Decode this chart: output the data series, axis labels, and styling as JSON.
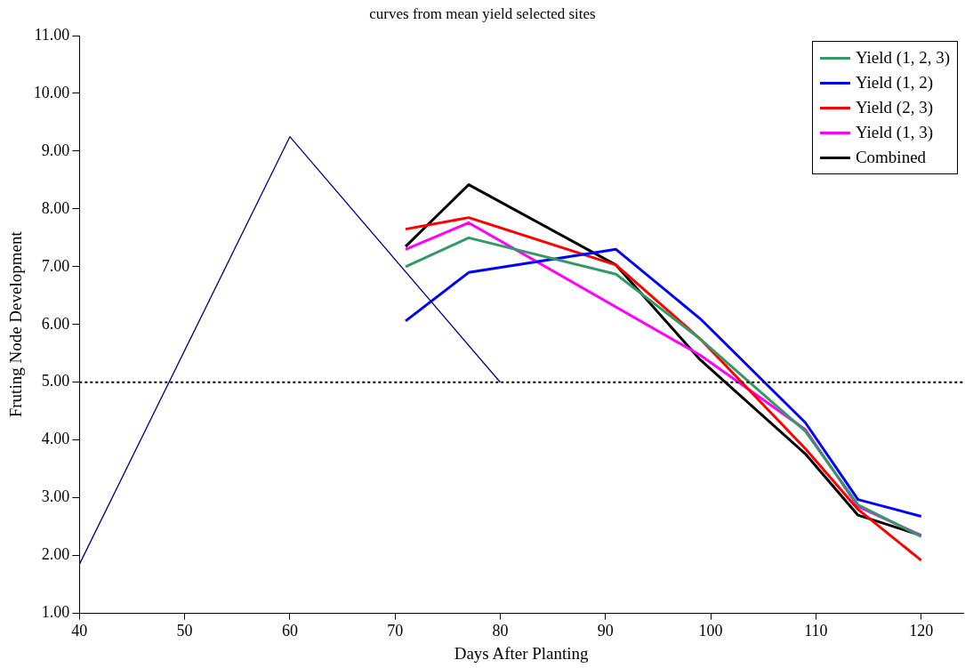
{
  "chart_data": {
    "type": "line",
    "title": "curves from mean yield selected sites",
    "xlabel": "Days After Planting",
    "ylabel": "Fruting Node Development",
    "x": [
      71,
      77,
      91,
      99,
      109,
      114,
      120
    ],
    "series": [
      {
        "name": "Yield (1, 2, 3)",
        "color": "#339966",
        "values": [
          7.0,
          7.5,
          6.87,
          5.75,
          4.15,
          2.88,
          2.33
        ]
      },
      {
        "name": "Yield (1, 2)",
        "color": "#0000ff",
        "values": [
          6.06,
          6.9,
          7.3,
          6.1,
          4.3,
          2.97,
          2.68
        ]
      },
      {
        "name": "Yield (2, 3)",
        "color": "#ff0000",
        "values": [
          7.65,
          7.85,
          7.03,
          5.75,
          3.85,
          2.8,
          1.92
        ]
      },
      {
        "name": "Yield (1, 3)",
        "color": "#ff00ff",
        "x": [
          71,
          77,
          99,
          109,
          114,
          120
        ],
        "values": [
          7.3,
          7.76,
          5.47,
          4.18,
          2.85,
          2.35
        ]
      },
      {
        "name": "Combined",
        "color": "#000000",
        "values": [
          7.35,
          8.42,
          7.03,
          5.39,
          3.76,
          2.7,
          2.35
        ]
      },
      {
        "color": "#000080",
        "x": [
          40,
          60,
          80
        ],
        "values": [
          1.85,
          9.25,
          5.0
        ]
      }
    ],
    "xlim": [
      40,
      124
    ],
    "xticks": [
      40,
      50,
      60,
      70,
      80,
      90,
      100,
      110,
      120
    ],
    "ylim": [
      1,
      11
    ],
    "yticks": [
      {
        "value": 1,
        "label": "1.00"
      },
      {
        "value": 2,
        "label": "2.00"
      },
      {
        "value": 3,
        "label": "3.00"
      },
      {
        "value": 4,
        "label": "4.00"
      },
      {
        "value": 5,
        "label": "5.00"
      },
      {
        "value": 6,
        "label": "6.00"
      },
      {
        "value": 7,
        "label": "7.00"
      },
      {
        "value": 8,
        "label": "8.00"
      },
      {
        "value": 9,
        "label": "9.00"
      },
      {
        "value": 10,
        "label": "10.00"
      },
      {
        "value": 11,
        "label": "11.00"
      }
    ],
    "ref_lines": [
      {
        "axis": "y",
        "value": 5,
        "color": "#000000",
        "line_style": "dotted"
      }
    ],
    "grid": false,
    "legend": "top right",
    "marker": "none",
    "line_style": "solid"
  }
}
